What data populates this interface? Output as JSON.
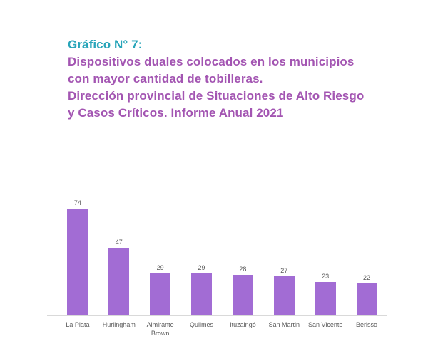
{
  "header": {
    "label": "Gráfico N° 7:",
    "subtitle_lines": [
      "Dispositivos duales colocados en los municipios",
      "con mayor cantidad de tobilleras.",
      "Dirección provincial de Situaciones de Alto Riesgo",
      "y Casos Críticos. Informe Anual 2021"
    ]
  },
  "colors": {
    "header_teal": "#28a5b9",
    "subtitle_purple": "#a355b2",
    "bar_fill": "#a26cd4",
    "axis_line": "#d9d9d9",
    "label_gray": "#595959",
    "background": "#ffffff"
  },
  "chart_data": {
    "type": "bar",
    "title": "Gráfico N° 7: Dispositivos duales colocados en los municipios con mayor cantidad de tobilleras. Dirección provincial de Situaciones de Alto Riesgo y Casos Críticos. Informe Anual 2021",
    "categories": [
      "La Plata",
      "Hurlingham",
      "Almirante Brown",
      "Quilmes",
      "Ituzaingó",
      "San Martin",
      "San Vicente",
      "Berisso"
    ],
    "values": [
      74,
      47,
      29,
      29,
      28,
      27,
      23,
      22
    ],
    "xlabel": "",
    "ylabel": "",
    "ylim": [
      0,
      80
    ],
    "grid": false,
    "legend": false,
    "data_labels_visible": true,
    "bar_color": "#a26cd4"
  }
}
